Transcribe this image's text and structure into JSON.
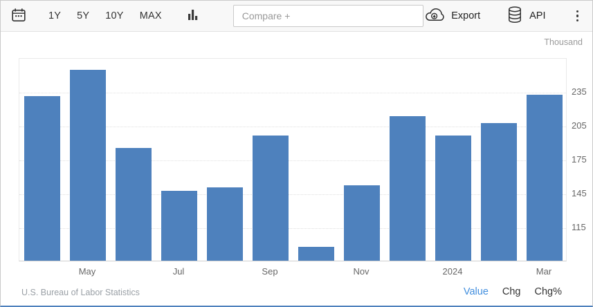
{
  "toolbar": {
    "icons": {
      "calendar": "calendar-icon",
      "chart_type": "column-chart-icon",
      "export": "cloud-download-icon",
      "api": "database-icon",
      "menu": "kebab-menu-icon"
    },
    "ranges": [
      "1Y",
      "5Y",
      "10Y",
      "MAX"
    ],
    "compare": {
      "placeholder": "Compare +",
      "value": ""
    },
    "export_label": "Export",
    "api_label": "API"
  },
  "footer": {
    "links": [
      {
        "label": "Value",
        "active": true
      },
      {
        "label": "Chg",
        "active": false
      },
      {
        "label": "Chg%",
        "active": false
      }
    ]
  },
  "colors": {
    "bar": "#4e81bd",
    "active_link": "#418ede",
    "grid": "#dfdfdf"
  },
  "chart_data": {
    "type": "bar",
    "categories": [
      "",
      "May",
      "",
      "Jul",
      "",
      "Sep",
      "",
      "Nov",
      "",
      "2024",
      "",
      "Mar"
    ],
    "values": [
      231,
      254,
      185,
      147,
      150,
      196,
      97,
      152,
      213,
      196,
      207,
      232
    ],
    "title": "",
    "xlabel": "",
    "ylabel": "Thousand",
    "y_ticks": [
      115,
      145,
      175,
      205,
      235
    ],
    "ylim": [
      85,
      265
    ],
    "y_axis_side": "right",
    "grid": "dotted horizontal",
    "legend": "none",
    "source": "U.S. Bureau of Labor Statistics"
  }
}
